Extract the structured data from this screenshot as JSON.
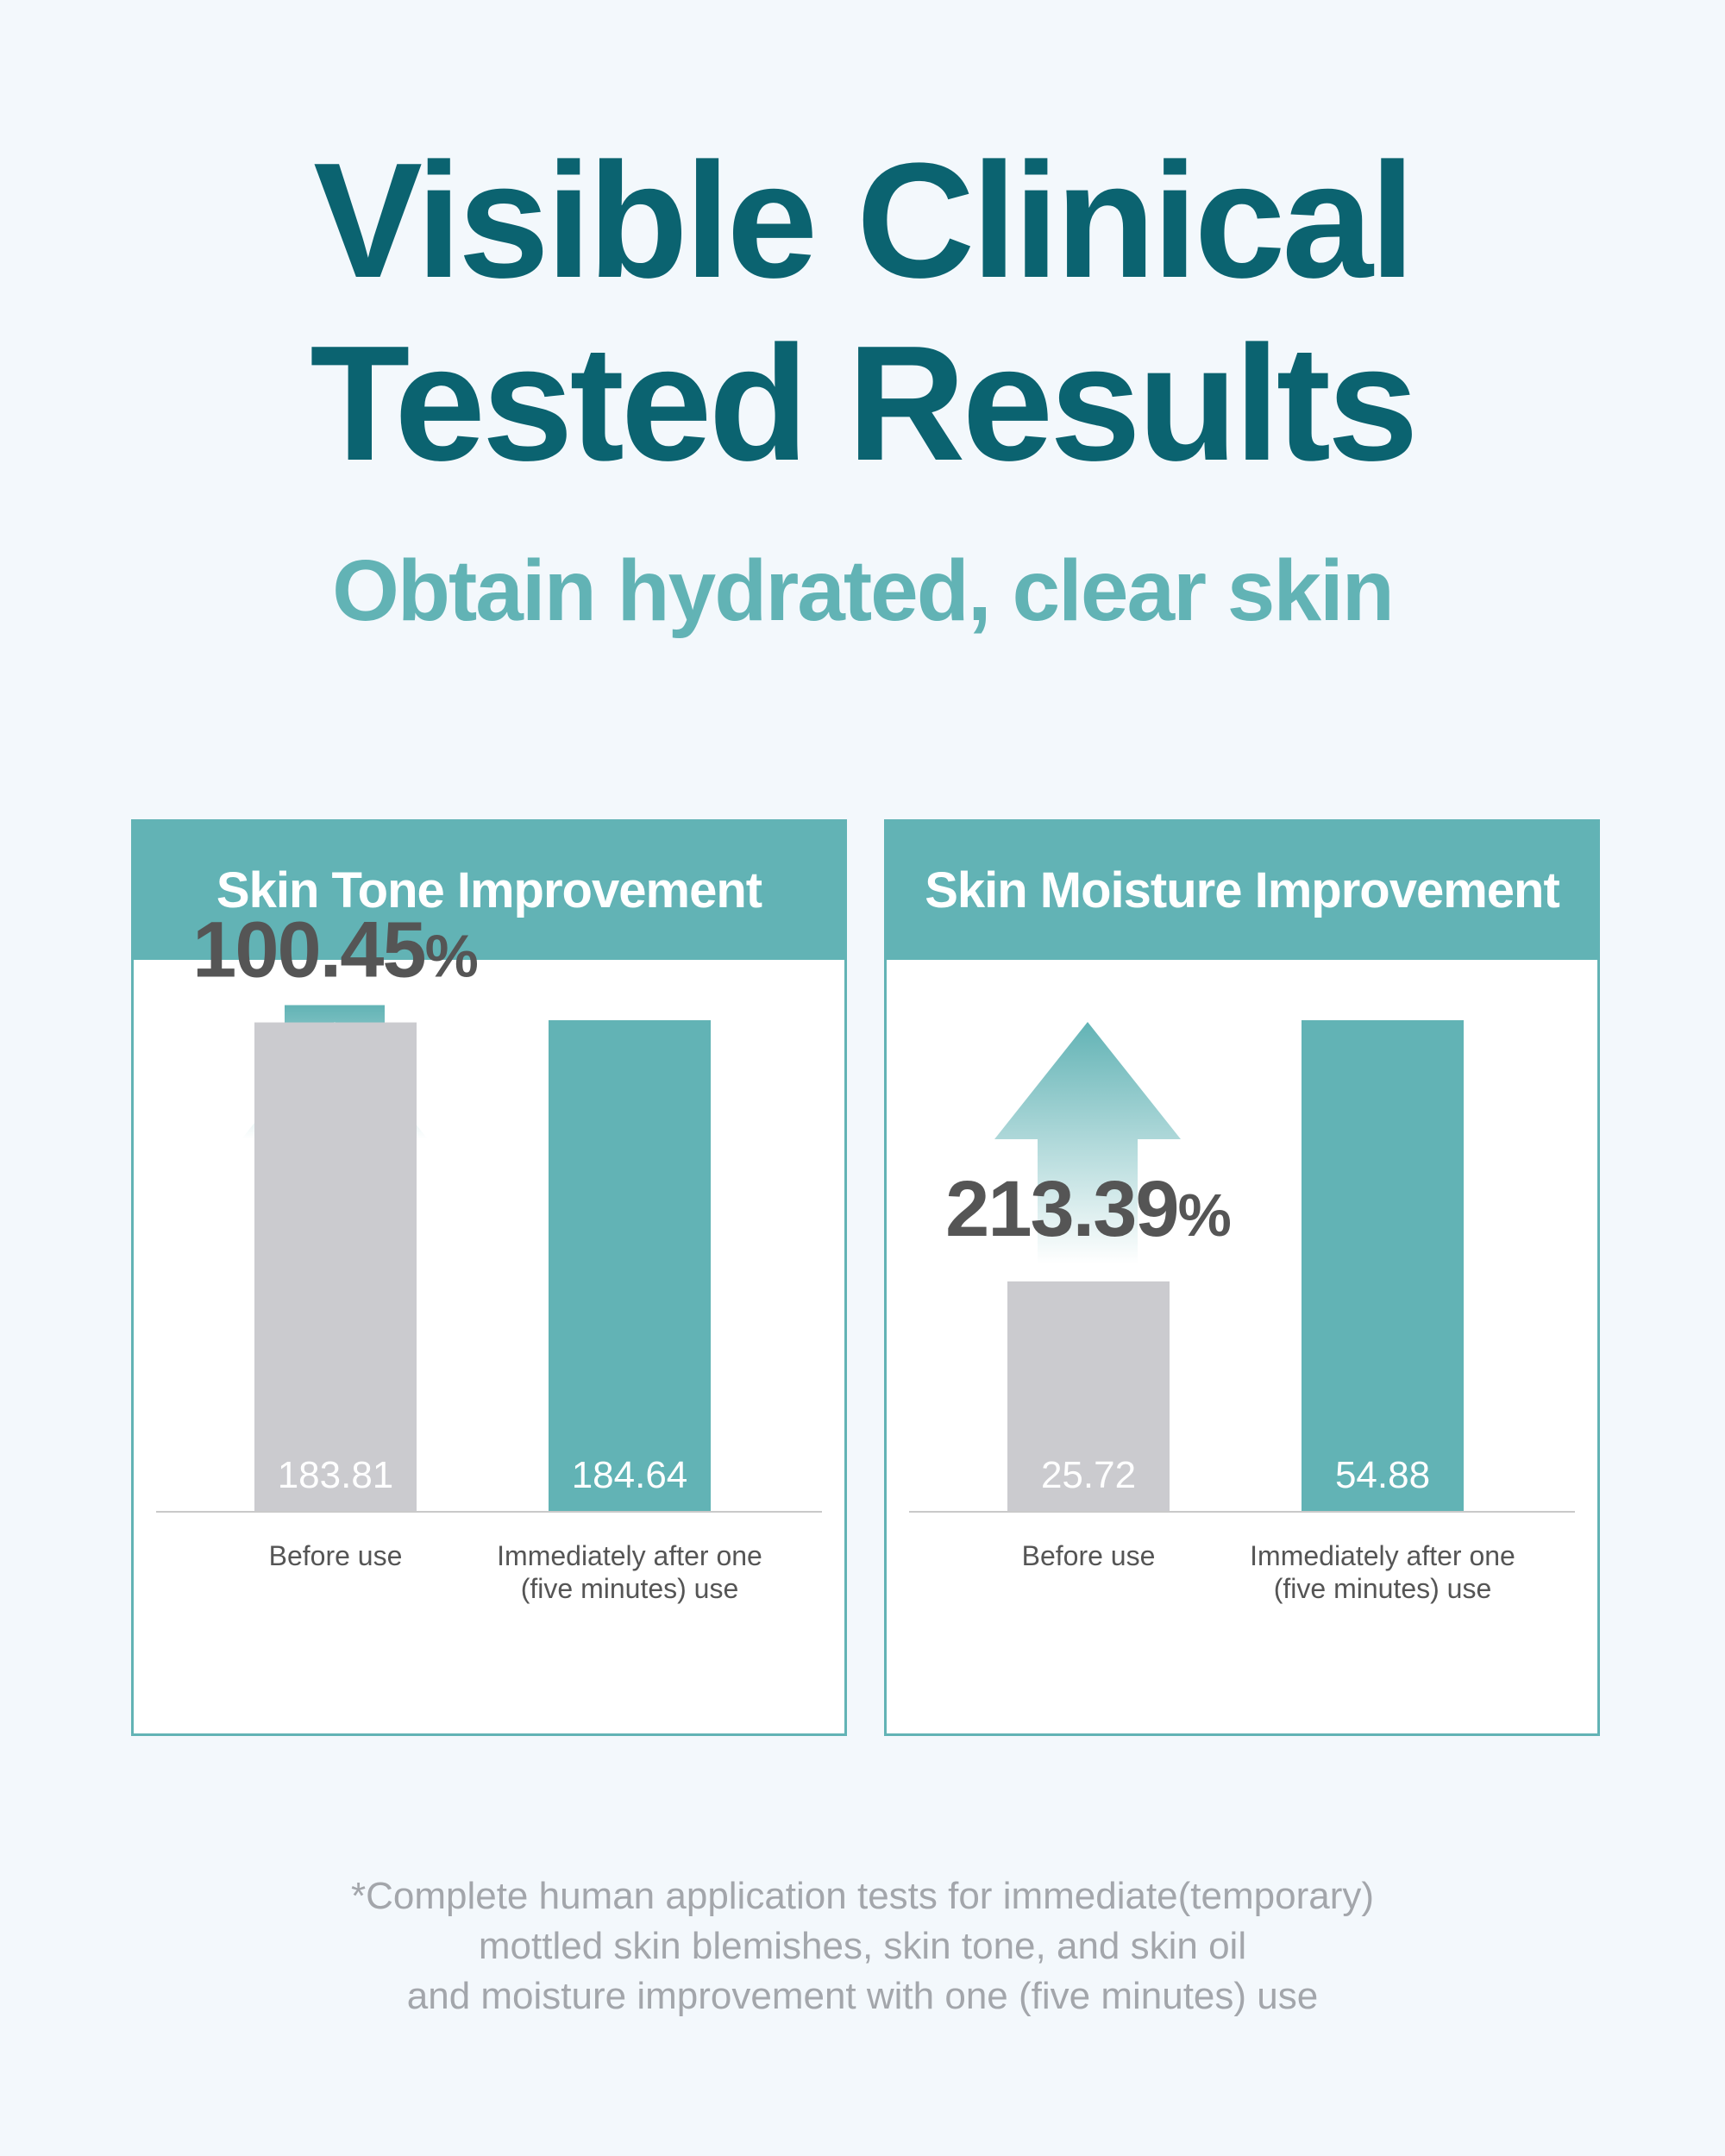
{
  "title_lines": [
    "Visible Clinical",
    "Tested Results"
  ],
  "subtitle": "Obtain hydrated, clear skin",
  "colors": {
    "title": "#0b6370",
    "accent": "#62b3b5",
    "before_bar": "#cbcbcf",
    "percent_text": "#555555",
    "footnote": "#a3a6ab",
    "background": "#f3f8fc"
  },
  "chart_data": [
    {
      "type": "bar",
      "title": "Skin Tone Improvement",
      "categories": [
        "Before use",
        "Immediately after one\n(five minutes) use"
      ],
      "values": [
        183.81,
        184.64
      ],
      "value_labels": [
        "183.81",
        "184.64"
      ],
      "increase_label": "100.45",
      "increase_unit": "%",
      "icon": "up-arrow-icon"
    },
    {
      "type": "bar",
      "title": "Skin Moisture Improvement",
      "categories": [
        "Before use",
        "Immediately after one\n(five minutes) use"
      ],
      "values": [
        25.72,
        54.88
      ],
      "value_labels": [
        "25.72",
        "54.88"
      ],
      "increase_label": "213.39",
      "increase_unit": "%",
      "icon": "up-arrow-icon"
    }
  ],
  "footnote_lines": [
    "*Complete human application tests for immediate(temporary)",
    "mottled skin blemishes, skin tone, and skin oil",
    "and moisture improvement with one (five minutes) use"
  ]
}
